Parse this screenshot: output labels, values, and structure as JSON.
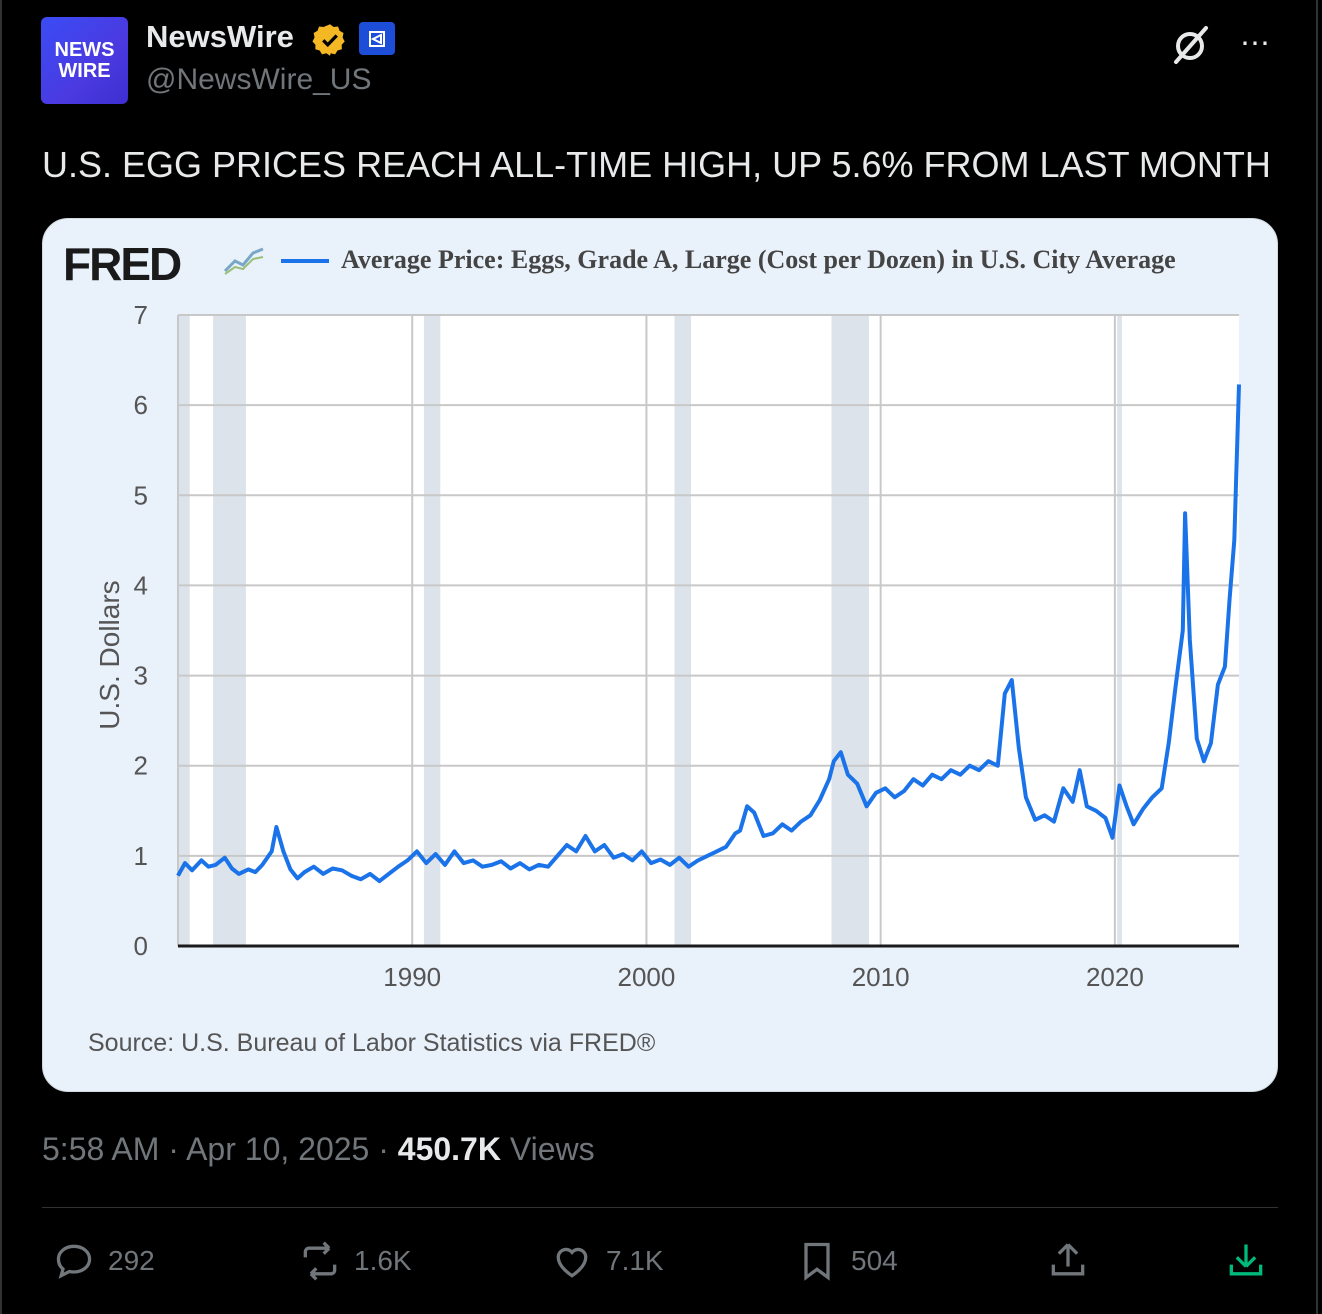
{
  "author": {
    "avatar_text_line1": "NEWS",
    "avatar_text_line2": "WIRE",
    "name": "NewsWire",
    "handle": "@NewsWire_US"
  },
  "tweet_text": "U.S. EGG PRICES REACH ALL-TIME HIGH, UP 5.6% FROM LAST MONTH",
  "chart_card": {
    "logo": "FRED",
    "legend": "Average Price: Eggs, Grade A, Large (Cost per Dozen) in U.S. City Average",
    "ylabel": "U.S. Dollars",
    "source": "Source: U.S. Bureau of Labor Statistics via FRED®"
  },
  "meta": {
    "time": "5:58 AM",
    "date": "Apr 10, 2025",
    "views_count": "450.7K",
    "views_label": "Views"
  },
  "actions": {
    "replies": "292",
    "reposts": "1.6K",
    "likes": "7.1K",
    "bookmarks": "504"
  },
  "colors": {
    "line": "#1a73e8",
    "verified": "#f4b824",
    "download": "#00ba7c"
  },
  "chart_data": {
    "type": "line",
    "title": "",
    "ylabel": "U.S. Dollars",
    "xlim": [
      1980,
      2025.3
    ],
    "ylim": [
      0,
      7
    ],
    "x_ticks": [
      "1990",
      "2000",
      "2010",
      "2020"
    ],
    "x_tick_values": [
      1990,
      2000,
      2010,
      2020
    ],
    "y_ticks": [
      "0",
      "1",
      "2",
      "3",
      "4",
      "5",
      "6",
      "7"
    ],
    "recessions": [
      [
        1980.0,
        1980.5
      ],
      [
        1981.5,
        1982.9
      ],
      [
        1990.5,
        1991.2
      ],
      [
        2001.2,
        2001.9
      ],
      [
        2007.9,
        2009.5
      ],
      [
        2020.1,
        2020.3
      ]
    ],
    "series": [
      {
        "name": "Average Price: Eggs, Grade A, Large (Cost per Dozen) in U.S. City Average",
        "x": [
          1980.0,
          1980.3,
          1980.6,
          1981.0,
          1981.3,
          1981.6,
          1982.0,
          1982.3,
          1982.6,
          1983.0,
          1983.3,
          1983.6,
          1984.0,
          1984.2,
          1984.5,
          1984.8,
          1985.1,
          1985.4,
          1985.8,
          1986.2,
          1986.6,
          1987.0,
          1987.4,
          1987.8,
          1988.2,
          1988.6,
          1989.0,
          1989.4,
          1989.8,
          1990.2,
          1990.6,
          1991.0,
          1991.4,
          1991.8,
          1992.2,
          1992.6,
          1993.0,
          1993.4,
          1993.8,
          1994.2,
          1994.6,
          1995.0,
          1995.4,
          1995.8,
          1996.2,
          1996.6,
          1997.0,
          1997.4,
          1997.8,
          1998.2,
          1998.6,
          1999.0,
          1999.4,
          1999.8,
          2000.2,
          2000.6,
          2001.0,
          2001.4,
          2001.8,
          2002.2,
          2002.6,
          2003.0,
          2003.4,
          2003.8,
          2004.0,
          2004.3,
          2004.6,
          2005.0,
          2005.4,
          2005.8,
          2006.2,
          2006.6,
          2007.0,
          2007.4,
          2007.8,
          2008.0,
          2008.3,
          2008.6,
          2009.0,
          2009.4,
          2009.8,
          2010.2,
          2010.6,
          2011.0,
          2011.4,
          2011.8,
          2012.2,
          2012.6,
          2013.0,
          2013.4,
          2013.8,
          2014.2,
          2014.6,
          2015.0,
          2015.3,
          2015.6,
          2015.9,
          2016.2,
          2016.6,
          2017.0,
          2017.4,
          2017.8,
          2018.2,
          2018.5,
          2018.8,
          2019.2,
          2019.6,
          2019.9,
          2020.2,
          2020.5,
          2020.8,
          2021.2,
          2021.6,
          2022.0,
          2022.3,
          2022.6,
          2022.9,
          2023.0,
          2023.2,
          2023.5,
          2023.8,
          2024.1,
          2024.4,
          2024.7,
          2024.9,
          2025.1,
          2025.3
        ],
        "y": [
          0.78,
          0.92,
          0.84,
          0.95,
          0.88,
          0.9,
          0.98,
          0.86,
          0.8,
          0.85,
          0.82,
          0.9,
          1.05,
          1.32,
          1.05,
          0.85,
          0.75,
          0.82,
          0.88,
          0.8,
          0.86,
          0.84,
          0.78,
          0.74,
          0.8,
          0.72,
          0.8,
          0.88,
          0.95,
          1.05,
          0.92,
          1.02,
          0.9,
          1.05,
          0.92,
          0.95,
          0.88,
          0.9,
          0.94,
          0.86,
          0.92,
          0.85,
          0.9,
          0.88,
          1.0,
          1.12,
          1.05,
          1.22,
          1.05,
          1.12,
          0.98,
          1.02,
          0.95,
          1.05,
          0.92,
          0.96,
          0.9,
          0.98,
          0.88,
          0.95,
          1.0,
          1.05,
          1.1,
          1.25,
          1.28,
          1.55,
          1.48,
          1.22,
          1.25,
          1.35,
          1.28,
          1.38,
          1.45,
          1.62,
          1.85,
          2.05,
          2.15,
          1.9,
          1.8,
          1.55,
          1.7,
          1.75,
          1.65,
          1.72,
          1.85,
          1.78,
          1.9,
          1.85,
          1.95,
          1.9,
          2.0,
          1.95,
          2.05,
          2.0,
          2.8,
          2.95,
          2.2,
          1.65,
          1.4,
          1.45,
          1.38,
          1.75,
          1.6,
          1.95,
          1.55,
          1.5,
          1.42,
          1.2,
          1.78,
          1.55,
          1.35,
          1.52,
          1.65,
          1.75,
          2.25,
          2.9,
          3.5,
          4.8,
          3.4,
          2.3,
          2.05,
          2.25,
          2.9,
          3.1,
          3.85,
          4.5,
          6.23
        ]
      }
    ]
  }
}
